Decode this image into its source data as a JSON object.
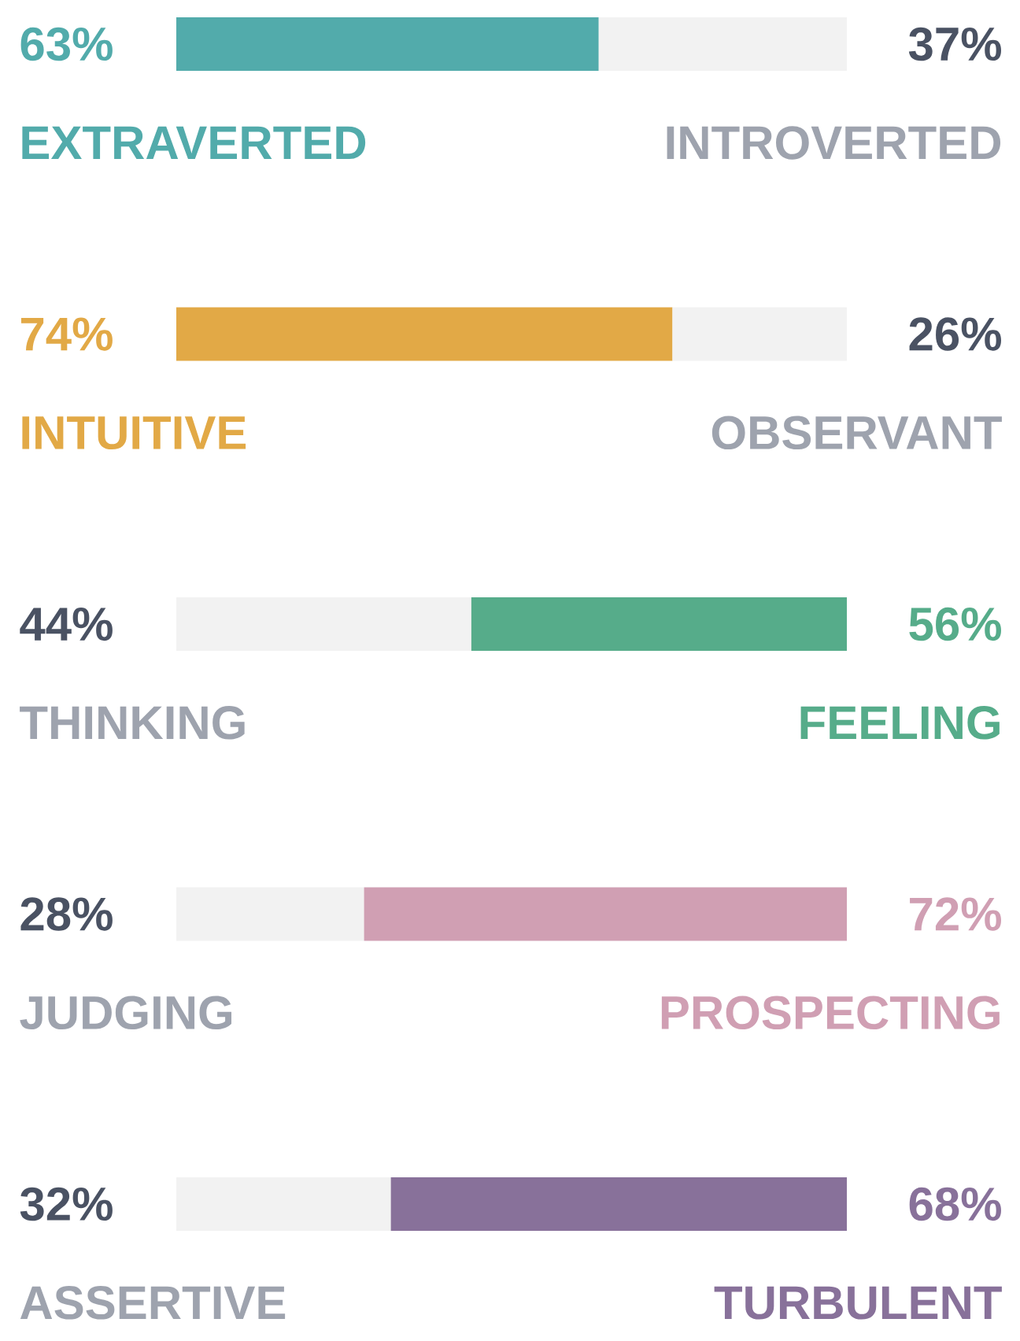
{
  "chart_data": {
    "type": "bar",
    "orientation": "horizontal",
    "stacked": true,
    "xlim": [
      0,
      100
    ],
    "categories": [
      "EXTRAVERTED",
      "INTUITIVE",
      "THINKING",
      "JUDGING",
      "ASSERTIVE"
    ],
    "series": [
      {
        "values": [
          63,
          74,
          44,
          28,
          32
        ],
        "colors": [
          "#52abab",
          "#e2a946",
          "#f2f2f2",
          "#f2f2f2",
          "#f2f2f2"
        ],
        "value_labels": [
          "63%",
          "74%",
          "44%",
          "28%",
          "32%"
        ]
      },
      {
        "values": [
          37,
          26,
          56,
          72,
          68
        ],
        "colors": [
          "#f2f2f2",
          "#f2f2f2",
          "#56ac8a",
          "#d09fb3",
          "#88719a"
        ],
        "value_labels": [
          "37%",
          "26%",
          "56%",
          "72%",
          "68%"
        ]
      }
    ],
    "annotations": [
      "INTROVERTED",
      "OBSERVANT",
      "FEELING",
      "PROSPECTING",
      "TURBULENT"
    ]
  }
}
